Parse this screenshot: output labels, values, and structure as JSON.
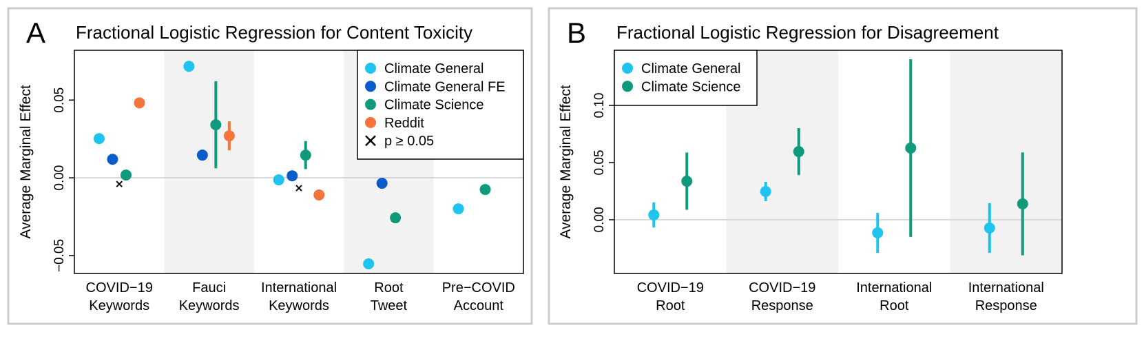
{
  "chart_data": [
    {
      "type": "dot_errorbar",
      "panel_label": "A",
      "title": "Fractional Logistic Regression for Content Toxicity",
      "y_label": "Average Marginal Effect",
      "categories": [
        "COVID−19\nKeywords",
        "Fauci\nKeywords",
        "International\nKeywords",
        "Root\nTweet",
        "Pre−COVID\nAccount"
      ],
      "ylim": [
        -0.0615,
        0.082
      ],
      "yticks": [
        {
          "value": -0.05,
          "label": "−0.05"
        },
        {
          "value": 0,
          "label": "0.00"
        },
        {
          "value": 0.05,
          "label": "0.05"
        }
      ],
      "alternate_shading": true,
      "legend": "upper right",
      "zero_line": true,
      "series": [
        {
          "name": "Climate General",
          "color": "#1ec3f0",
          "values": [
            0.0252,
            0.0717,
            -0.0013,
            -0.0553,
            -0.0199
          ],
          "errors": [
            null,
            0.0035,
            null,
            null,
            null
          ]
        },
        {
          "name": "Climate General FE",
          "color": "#0a5ccb",
          "values": [
            0.0119,
            0.0146,
            0.0013,
            -0.0035,
            null
          ],
          "errors": [
            null,
            null,
            null,
            null,
            null
          ]
        },
        {
          "name": "Climate Science",
          "color": "#0f9a7c",
          "values": [
            0.0018,
            0.0341,
            0.0146,
            -0.0257,
            -0.0075
          ],
          "errors": [
            null,
            0.028,
            0.009,
            null,
            null
          ]
        },
        {
          "name": "Reddit",
          "color": "#f5743c",
          "values": [
            0.0482,
            0.027,
            -0.011,
            null,
            null
          ],
          "errors": [
            null,
            0.0093,
            null,
            null,
            null
          ]
        },
        {
          "name": "p ≥ 0.05",
          "color": "#000000",
          "marker": "x",
          "values": [
            -0.004,
            null,
            -0.0066,
            null,
            null
          ]
        }
      ]
    },
    {
      "type": "dot_errorbar",
      "panel_label": "B",
      "title": "Fractional Logistic Regression for Disagreement",
      "y_label": "Average Marginal Effect",
      "categories": [
        "COVID−19\nRoot",
        "COVID−19\nResponse",
        "International\nRoot",
        "International\nResponse"
      ],
      "ylim": [
        -0.047,
        0.1482
      ],
      "yticks": [
        {
          "value": 0,
          "label": "0.00"
        },
        {
          "value": 0.05,
          "label": "0.05"
        },
        {
          "value": 0.1,
          "label": "0.10"
        }
      ],
      "alternate_shading": true,
      "legend": "upper left",
      "zero_line": true,
      "series": [
        {
          "name": "Climate General",
          "color": "#1ec3f0",
          "values": [
            0.0042,
            0.0247,
            -0.0114,
            -0.0072
          ],
          "errors": [
            0.011,
            0.0084,
            0.0175,
            0.0217
          ]
        },
        {
          "name": "Climate Science",
          "color": "#0f9a7c",
          "values": [
            0.0337,
            0.0596,
            0.0627,
            0.0139
          ],
          "errors": [
            0.025,
            0.0205,
            0.0777,
            0.045
          ]
        }
      ]
    }
  ]
}
